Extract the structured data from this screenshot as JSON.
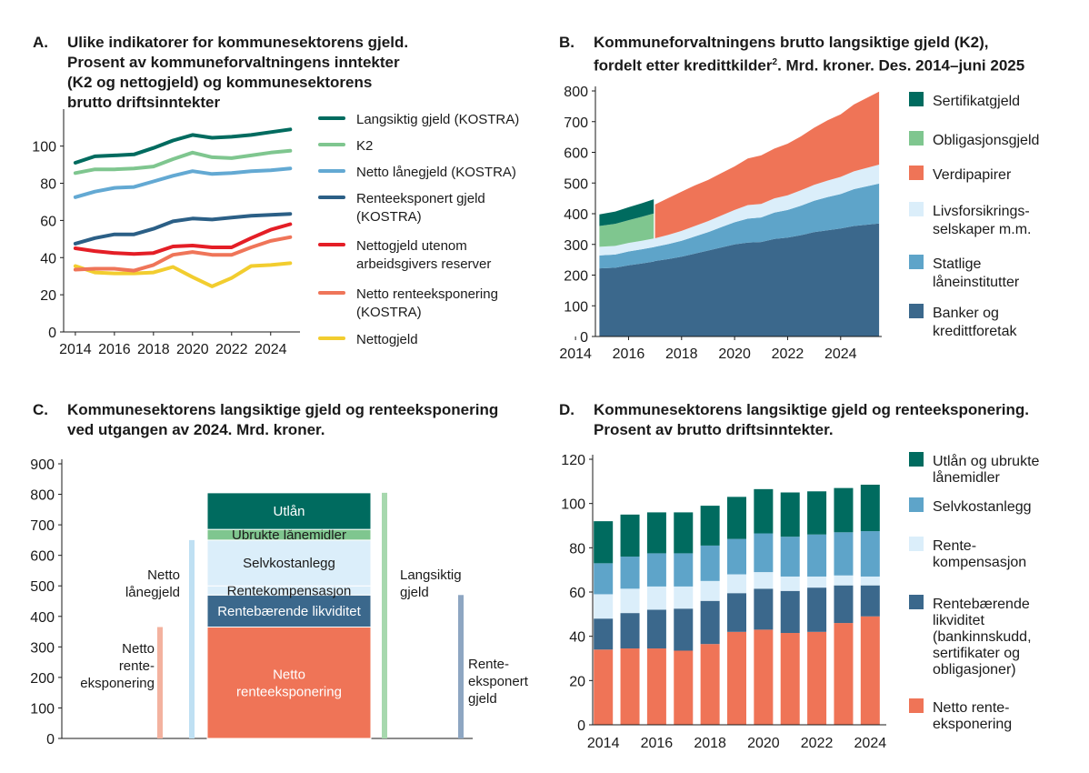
{
  "panels": {
    "a": {
      "letter": "A.",
      "lines": [
        "Ulike indikatorer for kommunesektorens gjeld.",
        "Prosent av kommuneforvaltningens inntekter",
        "(K2 og nettogjeld) og kommunesektorens",
        "brutto driftsinntekter"
      ]
    },
    "b": {
      "letter": "B.",
      "lines": [
        "Kommuneforvaltningens brutto langsiktige gjeld (K2),",
        "fordelt etter kredittkilder",
        ". Mrd. kroner. Des. 2014–juni 2025"
      ],
      "superscript": "2"
    },
    "c": {
      "letter": "C.",
      "lines": [
        "Kommunesektorens langsiktige gjeld og renteeksponering",
        "ved utgangen av 2024. Mrd. kroner."
      ]
    },
    "d": {
      "letter": "D.",
      "lines": [
        "Kommunesektorens langsiktige gjeld og renteeksponering.",
        "Prosent av brutto driftsinntekter."
      ]
    }
  },
  "chart_data": [
    {
      "id": "A",
      "type": "line",
      "x": [
        2014,
        2015,
        2016,
        2017,
        2018,
        2019,
        2020,
        2021,
        2022,
        2023,
        2024,
        2025
      ],
      "series": [
        {
          "name": "Langsiktig gjeld (KOSTRA)",
          "color": "#006b5f",
          "values": [
            91,
            94.5,
            95,
            95.5,
            99,
            103,
            106,
            104.5,
            105,
            106,
            107.5,
            109
          ]
        },
        {
          "name": "K2",
          "color": "#7fc68f",
          "values": [
            85.5,
            87.5,
            87.5,
            88,
            89,
            93,
            96.5,
            94,
            93.5,
            95,
            96.5,
            97.5
          ]
        },
        {
          "name": "Netto lånegjeld (KOSTRA)",
          "color": "#63a9d3",
          "values": [
            72.5,
            75.5,
            77.5,
            78,
            81,
            84,
            86.5,
            85,
            85.5,
            86.5,
            87,
            88
          ]
        },
        {
          "name": "Renteeksponert gjeld (KOSTRA)",
          "color": "#2b5f86",
          "values": [
            47.5,
            50.5,
            52.5,
            52.5,
            55.5,
            59.5,
            61,
            60.5,
            61.5,
            62.5,
            63,
            63.5
          ]
        },
        {
          "name": "Nettogjeld utenom arbeidsgivers reserver",
          "color": "#e41e26",
          "values": [
            45,
            43.5,
            42.5,
            42,
            42.5,
            46,
            46.5,
            45.5,
            45.5,
            50.5,
            55,
            58
          ]
        },
        {
          "name": "Netto renteeksponering (KOSTRA)",
          "color": "#ef7559",
          "values": [
            33.5,
            34,
            34,
            33,
            36,
            41.5,
            43,
            41.5,
            41.5,
            45.5,
            49,
            51
          ]
        },
        {
          "name": "Nettogjeld",
          "color": "#f2cd2f",
          "values": [
            35.5,
            32,
            31.5,
            31.5,
            32,
            35,
            29.5,
            24.5,
            29,
            35.5,
            36,
            37
          ]
        }
      ],
      "legend": [
        "Langsiktig gjeld (KOSTRA)",
        "K2",
        "Netto lånegjeld (KOSTRA)",
        "Renteeksponert gjeld",
        "(KOSTRA)",
        "Nettogjeld utenom",
        "arbeidsgivers reserver",
        "Netto renteeksponering",
        "(KOSTRA)",
        "Nettogjeld"
      ],
      "xticks": [
        "2014",
        "2016",
        "2018",
        "2020",
        "2022",
        "2024"
      ],
      "yticks": [
        "0",
        "20",
        "40",
        "60",
        "80",
        "100"
      ],
      "ylim": [
        0,
        115
      ]
    },
    {
      "id": "B",
      "type": "area",
      "x": [
        2014.9,
        2015.5,
        2016.0,
        2016.5,
        2016.95,
        2017.0,
        2017.5,
        2018,
        2018.5,
        2019,
        2019.5,
        2020,
        2020.5,
        2021,
        2021.5,
        2022,
        2022.5,
        2023,
        2023.5,
        2024,
        2024.5,
        2025.45
      ],
      "series": [
        {
          "name": "Banker og kredittforetak",
          "color": "#3b688c",
          "values": [
            222,
            224,
            232,
            238,
            244,
            246,
            252,
            260,
            270,
            280,
            290,
            300,
            306,
            308,
            318,
            322,
            330,
            340,
            346,
            352,
            360,
            368
          ]
        },
        {
          "name": "Statlige låneinstitutter",
          "color": "#5ea4c9",
          "values": [
            42,
            43,
            45,
            46,
            47,
            46,
            49,
            52,
            56,
            60,
            66,
            72,
            78,
            80,
            86,
            90,
            96,
            102,
            108,
            112,
            120,
            130
          ]
        },
        {
          "name": "Livsforsikrings- selskaper m.m.",
          "color": "#dbeefa",
          "values": [
            28,
            28,
            28,
            28,
            28,
            28,
            30,
            32,
            34,
            36,
            38,
            40,
            44,
            44,
            46,
            48,
            50,
            52,
            54,
            56,
            58,
            62
          ]
        },
        {
          "name": "Verdipapirer",
          "color": "#ef7457",
          "values": [
            0,
            0,
            0,
            0,
            0,
            110,
            120,
            128,
            132,
            134,
            138,
            142,
            152,
            158,
            162,
            168,
            176,
            186,
            196,
            204,
            218,
            238
          ]
        },
        {
          "name": "Obligasjonsgjeld",
          "color": "#7fc68f",
          "values": [
            68,
            72,
            74,
            78,
            82,
            0,
            0,
            0,
            0,
            0,
            0,
            0,
            0,
            0,
            0,
            0,
            0,
            0,
            0,
            0,
            0,
            0
          ]
        },
        {
          "name": "Sertifikatgjeld",
          "color": "#006b5f",
          "values": [
            38,
            40,
            42,
            44,
            46,
            0,
            0,
            0,
            0,
            0,
            0,
            0,
            0,
            0,
            0,
            0,
            0,
            0,
            0,
            0,
            0,
            0
          ]
        }
      ],
      "legend": [
        {
          "lines": [
            "Sertifikatgjeld"
          ],
          "color": "#006b5f"
        },
        {
          "lines": [
            "Obligasjonsgjeld"
          ],
          "color": "#7fc68f"
        },
        {
          "lines": [
            "Verdipapirer"
          ],
          "color": "#ef7457"
        },
        {
          "lines": [
            "Livsforsikrings-",
            "selskaper m.m."
          ],
          "color": "#dbeefa"
        },
        {
          "lines": [
            "Statlige",
            "låneinstitutter"
          ],
          "color": "#5ea4c9"
        },
        {
          "lines": [
            "Banker og",
            "kredittforetak"
          ],
          "color": "#3b688c"
        }
      ],
      "xticks": [
        "2014",
        "2016",
        "2018",
        "2020",
        "2022",
        "2024"
      ],
      "yticks": [
        "0",
        "100",
        "200",
        "300",
        "400",
        "500",
        "600",
        "700",
        "800"
      ],
      "ylim": [
        0,
        800
      ]
    },
    {
      "id": "C",
      "type": "bar",
      "stack": [
        {
          "name": "Netto renteeksponering",
          "lines": [
            "Netto",
            "renteeksponering"
          ],
          "color": "#ef7457",
          "from": 0,
          "to": 365
        },
        {
          "name": "Rentebærende likviditet",
          "lines": [
            "Rentebærende likviditet"
          ],
          "color": "#3b688c",
          "from": 365,
          "to": 470
        },
        {
          "name": "Rentekompensasjon",
          "lines": [
            "Rentekompensasjon"
          ],
          "color": "#dbeefa",
          "from": 470,
          "to": 500
        },
        {
          "name": "Selvkostanlegg",
          "lines": [
            "Selvkostanlegg"
          ],
          "color": "#dbeefa",
          "from": 500,
          "to": 650
        },
        {
          "name": "Ubrukte lånemidler",
          "lines": [
            "Ubrukte lånemidler"
          ],
          "color": "#7fc68f",
          "from": 650,
          "to": 685
        },
        {
          "name": "Utlån",
          "lines": [
            "Utlån"
          ],
          "color": "#006b5f",
          "from": 685,
          "to": 805
        }
      ],
      "brackets": [
        {
          "lines": [
            "Netto",
            "rente-",
            "eksponering"
          ],
          "value": 365,
          "color": "#f3b29f"
        },
        {
          "lines": [
            "Netto",
            "lånegjeld"
          ],
          "value": 650,
          "color": "#bfe0f3"
        },
        {
          "lines": [
            "Langsiktig",
            "gjeld"
          ],
          "value": 805,
          "color": "#a7d8ae"
        },
        {
          "lines": [
            "Rente-",
            "eksponert",
            "gjeld"
          ],
          "value": 470,
          "color": "#8ea6c2"
        }
      ],
      "yticks": [
        "0",
        "100",
        "200",
        "300",
        "400",
        "500",
        "600",
        "700",
        "800",
        "900"
      ],
      "ylim": [
        0,
        900
      ]
    },
    {
      "id": "D",
      "type": "bar",
      "categories": [
        "2014",
        "2015",
        "2016",
        "2017",
        "2018",
        "2019",
        "2020",
        "2021",
        "2022",
        "2023",
        "2024"
      ],
      "series": [
        {
          "name": "Netto renteeksponering",
          "color": "#ef7457",
          "values": [
            34,
            34.5,
            34.5,
            33.5,
            36.5,
            42,
            43,
            41.5,
            42,
            46,
            49
          ]
        },
        {
          "name": "Rentebærende likviditet",
          "color": "#3b688c",
          "values": [
            14,
            16,
            17.5,
            19,
            19.5,
            17.5,
            18.5,
            19,
            20,
            17,
            14
          ]
        },
        {
          "name": "Rentekompensasjon",
          "color": "#dbeefa",
          "values": [
            11,
            11,
            10.5,
            10,
            9,
            8.5,
            7.5,
            6.5,
            5,
            4.5,
            4
          ]
        },
        {
          "name": "Selvkostanlegg",
          "color": "#5ea4c9",
          "values": [
            14,
            14.5,
            15,
            15,
            16,
            16,
            17.5,
            18,
            19,
            19.5,
            20.5
          ]
        },
        {
          "name": "Utlån og ubrukte lånemidler",
          "color": "#006b5f",
          "values": [
            19,
            19,
            18.5,
            18.5,
            18,
            19,
            20,
            20,
            19.5,
            20,
            21
          ]
        }
      ],
      "legend": [
        {
          "lines": [
            "Utlån og ubrukte",
            "lånemidler"
          ],
          "color": "#006b5f"
        },
        {
          "lines": [
            "Selvkostanlegg"
          ],
          "color": "#5ea4c9"
        },
        {
          "lines": [
            "Rente-",
            "kompensasjon"
          ],
          "color": "#dbeefa"
        },
        {
          "lines": [
            "Rentebærende",
            "likviditet",
            "(bankinnskudd,",
            "sertifikater og",
            "obligasjoner)"
          ],
          "color": "#3b688c"
        },
        {
          "lines": [
            "Netto rente-",
            "eksponering"
          ],
          "color": "#ef7457"
        }
      ],
      "xticks": [
        "2014",
        "2016",
        "2018",
        "2020",
        "2022",
        "2024"
      ],
      "yticks": [
        "0",
        "20",
        "40",
        "60",
        "80",
        "100",
        "120"
      ],
      "ylim": [
        0,
        120
      ]
    }
  ]
}
